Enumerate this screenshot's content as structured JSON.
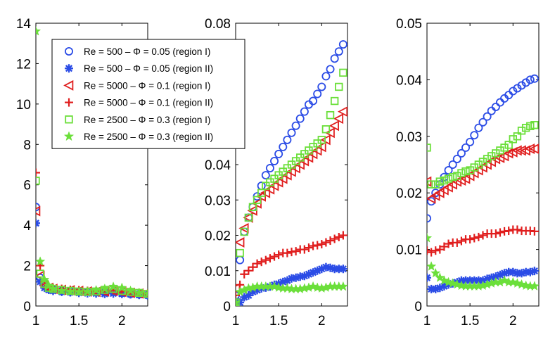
{
  "chart_data": [
    {
      "type": "scatter",
      "panel": "left",
      "xlim": [
        1,
        2.3
      ],
      "ylim": [
        0,
        14
      ],
      "xticks": [
        1,
        1.5,
        2
      ],
      "xtick_labels": [
        "1",
        "1.5",
        "2"
      ],
      "yticks": [
        0,
        2,
        4,
        6,
        8,
        10,
        12,
        14
      ],
      "ytick_labels": [
        "0",
        "2",
        "4",
        "6",
        "8",
        "10",
        "12",
        "14"
      ],
      "series": [
        {
          "name": "Re = 500 – Φ = 0.05 (region I)",
          "marker": "circle",
          "color": "#2b4ce6",
          "x": [
            1.0,
            1.05,
            1.1,
            1.15,
            1.2,
            1.3,
            1.4,
            1.5,
            1.6,
            1.7,
            1.8,
            1.9,
            2.0,
            2.1,
            2.2,
            2.3
          ],
          "y": [
            4.9,
            1.4,
            1.0,
            0.85,
            0.8,
            0.75,
            0.72,
            0.7,
            0.7,
            0.68,
            0.68,
            0.7,
            0.65,
            0.6,
            0.58,
            0.55
          ]
        },
        {
          "name": "Re = 500 – Φ = 0.05 (region II)",
          "marker": "asterisk",
          "color": "#2b4ce6",
          "x": [
            1.0,
            1.05,
            1.1,
            1.15,
            1.2,
            1.3,
            1.4,
            1.5,
            1.6,
            1.7,
            1.8,
            1.9,
            2.0,
            2.1,
            2.2,
            2.3
          ],
          "y": [
            4.1,
            1.2,
            0.9,
            0.8,
            0.75,
            0.7,
            0.68,
            0.65,
            0.63,
            0.62,
            0.6,
            0.62,
            0.6,
            0.58,
            0.55,
            0.52
          ]
        },
        {
          "name": "Re = 5000 – Φ = 0.1 (region I)",
          "marker": "triangle-left",
          "color": "#e01e1e",
          "x": [
            1.0,
            1.05,
            1.1,
            1.15,
            1.2,
            1.3,
            1.4,
            1.5,
            1.6,
            1.7,
            1.8,
            1.9,
            2.0,
            2.1,
            2.2,
            2.3
          ],
          "y": [
            4.7,
            1.5,
            1.0,
            0.9,
            0.85,
            0.8,
            0.78,
            0.75,
            0.72,
            0.7,
            0.72,
            0.75,
            0.7,
            0.65,
            0.62,
            0.6
          ]
        },
        {
          "name": "Re = 5000 – Φ = 0.1 (region II)",
          "marker": "plus",
          "color": "#e01e1e",
          "x": [
            1.0,
            1.05,
            1.1,
            1.15,
            1.2,
            1.3,
            1.4,
            1.5,
            1.6,
            1.7,
            1.8,
            1.9,
            2.0,
            2.1,
            2.2,
            2.3
          ],
          "y": [
            6.6,
            2.0,
            1.2,
            0.95,
            0.9,
            0.85,
            0.8,
            0.78,
            0.75,
            0.74,
            0.75,
            0.78,
            0.72,
            0.68,
            0.65,
            0.62
          ]
        },
        {
          "name": "Re = 2500 – Φ = 0.3 (region I)",
          "marker": "square",
          "color": "#6bdf3a",
          "x": [
            1.0,
            1.05,
            1.1,
            1.15,
            1.2,
            1.3,
            1.4,
            1.5,
            1.6,
            1.7,
            1.8,
            1.9,
            2.0,
            2.1,
            2.2,
            2.3
          ],
          "y": [
            6.2,
            1.6,
            1.1,
            0.9,
            0.85,
            0.8,
            0.75,
            0.72,
            0.7,
            0.72,
            0.8,
            0.85,
            0.75,
            0.7,
            0.65,
            0.6
          ]
        },
        {
          "name": "Re = 2500 – Φ = 0.3 (region II)",
          "marker": "star",
          "color": "#6bdf3a",
          "x": [
            1.0,
            1.05,
            1.1,
            1.15,
            1.2,
            1.3,
            1.4,
            1.5,
            1.6,
            1.7,
            1.8,
            1.9,
            2.0,
            2.1,
            2.2,
            2.3
          ],
          "y": [
            13.6,
            2.2,
            1.3,
            1.0,
            0.85,
            0.75,
            0.72,
            0.7,
            0.72,
            0.78,
            0.85,
            0.95,
            0.9,
            0.75,
            0.65,
            0.6
          ]
        }
      ]
    },
    {
      "type": "scatter",
      "panel": "middle",
      "xlim": [
        1,
        2.3
      ],
      "ylim": [
        0,
        0.08
      ],
      "xticks": [
        1,
        1.5,
        2
      ],
      "xtick_labels": [
        "1",
        "1.5",
        "2"
      ],
      "yticks": [
        0,
        0.01,
        0.02,
        0.03,
        0.04,
        0.08
      ],
      "ytick_labels": [
        "0",
        "0.01",
        "0.02",
        "0.03",
        "0.04",
        "0.08"
      ],
      "series": [
        {
          "name": "Re = 500 – Φ = 0.05 (region I)",
          "marker": "circle",
          "color": "#2b4ce6",
          "x": [
            1.0,
            1.05,
            1.1,
            1.15,
            1.2,
            1.25,
            1.3,
            1.35,
            1.4,
            1.45,
            1.5,
            1.55,
            1.6,
            1.65,
            1.7,
            1.75,
            1.8,
            1.85,
            1.9,
            1.95,
            2.0,
            2.05,
            2.1,
            2.15,
            2.2,
            2.25
          ],
          "y": [
            0.003,
            0.013,
            0.021,
            0.025,
            0.028,
            0.031,
            0.034,
            0.037,
            0.039,
            0.041,
            0.043,
            0.045,
            0.047,
            0.049,
            0.051,
            0.053,
            0.055,
            0.057,
            0.058,
            0.06,
            0.062,
            0.065,
            0.067,
            0.07,
            0.072,
            0.074
          ]
        },
        {
          "name": "Re = 500 – Φ = 0.05 (region II)",
          "marker": "asterisk",
          "color": "#2b4ce6",
          "x": [
            1.0,
            1.05,
            1.1,
            1.15,
            1.2,
            1.25,
            1.3,
            1.35,
            1.4,
            1.45,
            1.5,
            1.55,
            1.6,
            1.65,
            1.7,
            1.75,
            1.8,
            1.85,
            1.9,
            1.95,
            2.0,
            2.05,
            2.1,
            2.15,
            2.2,
            2.25
          ],
          "y": [
            0.0015,
            0.001,
            0.0025,
            0.003,
            0.004,
            0.0045,
            0.005,
            0.0052,
            0.0055,
            0.006,
            0.0063,
            0.0068,
            0.0072,
            0.0078,
            0.008,
            0.0083,
            0.0085,
            0.009,
            0.0095,
            0.01,
            0.0105,
            0.011,
            0.0108,
            0.0105,
            0.0105,
            0.0105
          ]
        },
        {
          "name": "Re = 5000 – Φ = 0.1 (region I)",
          "marker": "triangle-left",
          "color": "#e01e1e",
          "x": [
            1.0,
            1.05,
            1.1,
            1.15,
            1.2,
            1.25,
            1.3,
            1.35,
            1.4,
            1.45,
            1.5,
            1.55,
            1.6,
            1.65,
            1.7,
            1.75,
            1.8,
            1.85,
            1.9,
            1.95,
            2.0,
            2.05,
            2.1,
            2.15,
            2.2,
            2.25
          ],
          "y": [
            0.005,
            0.018,
            0.022,
            0.025,
            0.027,
            0.029,
            0.031,
            0.032,
            0.033,
            0.034,
            0.035,
            0.036,
            0.037,
            0.038,
            0.039,
            0.04,
            0.041,
            0.042,
            0.043,
            0.044,
            0.045,
            0.047,
            0.049,
            0.051,
            0.053,
            0.055
          ]
        },
        {
          "name": "Re = 5000 – Φ = 0.1 (region II)",
          "marker": "plus",
          "color": "#e01e1e",
          "x": [
            1.0,
            1.05,
            1.1,
            1.15,
            1.2,
            1.25,
            1.3,
            1.35,
            1.4,
            1.45,
            1.5,
            1.55,
            1.6,
            1.65,
            1.7,
            1.75,
            1.8,
            1.85,
            1.9,
            1.95,
            2.0,
            2.05,
            2.1,
            2.15,
            2.2,
            2.25
          ],
          "y": [
            0.003,
            0.006,
            0.009,
            0.01,
            0.011,
            0.012,
            0.0125,
            0.013,
            0.0135,
            0.014,
            0.0145,
            0.015,
            0.015,
            0.0153,
            0.0155,
            0.016,
            0.016,
            0.0165,
            0.017,
            0.0172,
            0.0175,
            0.018,
            0.0185,
            0.019,
            0.0195,
            0.02
          ]
        },
        {
          "name": "Re = 2500 – Φ = 0.3 (region I)",
          "marker": "square",
          "color": "#6bdf3a",
          "x": [
            1.0,
            1.05,
            1.1,
            1.15,
            1.2,
            1.25,
            1.3,
            1.35,
            1.4,
            1.45,
            1.5,
            1.55,
            1.6,
            1.65,
            1.7,
            1.75,
            1.8,
            1.85,
            1.9,
            1.95,
            2.0,
            2.05,
            2.1,
            2.15,
            2.2,
            2.25
          ],
          "y": [
            0.001,
            0.015,
            0.021,
            0.025,
            0.028,
            0.03,
            0.032,
            0.034,
            0.035,
            0.036,
            0.037,
            0.038,
            0.039,
            0.04,
            0.041,
            0.042,
            0.043,
            0.044,
            0.045,
            0.046,
            0.047,
            0.05,
            0.054,
            0.058,
            0.062,
            0.066
          ]
        },
        {
          "name": "Re = 2500 – Φ = 0.3 (region II)",
          "marker": "star",
          "color": "#6bdf3a",
          "x": [
            1.0,
            1.05,
            1.1,
            1.15,
            1.2,
            1.25,
            1.3,
            1.35,
            1.4,
            1.45,
            1.5,
            1.55,
            1.6,
            1.65,
            1.7,
            1.75,
            1.8,
            1.85,
            1.9,
            1.95,
            2.0,
            2.05,
            2.1,
            2.15,
            2.2,
            2.25
          ],
          "y": [
            0.001,
            0.004,
            0.0045,
            0.005,
            0.0052,
            0.0055,
            0.0055,
            0.0055,
            0.0055,
            0.0055,
            0.0052,
            0.005,
            0.005,
            0.0048,
            0.0048,
            0.0048,
            0.005,
            0.0052,
            0.0055,
            0.0052,
            0.005,
            0.0052,
            0.0055,
            0.0055,
            0.0055,
            0.0055
          ]
        }
      ]
    },
    {
      "type": "scatter",
      "panel": "right",
      "xlim": [
        1,
        2.3
      ],
      "ylim": [
        0,
        0.05
      ],
      "xticks": [
        1,
        1.5,
        2
      ],
      "xtick_labels": [
        "1",
        "1.5",
        "2"
      ],
      "yticks": [
        0,
        0.01,
        0.02,
        0.03,
        0.04,
        0.05
      ],
      "ytick_labels": [
        "0",
        "0.01",
        "0.02",
        "0.03",
        "0.04",
        "0.05"
      ],
      "series": [
        {
          "name": "Re = 500 – Φ = 0.05 (region I)",
          "marker": "circle",
          "color": "#2b4ce6",
          "x": [
            1.0,
            1.05,
            1.1,
            1.15,
            1.2,
            1.25,
            1.3,
            1.35,
            1.4,
            1.45,
            1.5,
            1.55,
            1.6,
            1.65,
            1.7,
            1.75,
            1.8,
            1.85,
            1.9,
            1.95,
            2.0,
            2.05,
            2.1,
            2.15,
            2.2,
            2.25
          ],
          "y": [
            0.0155,
            0.0185,
            0.02,
            0.0215,
            0.0228,
            0.024,
            0.025,
            0.026,
            0.027,
            0.028,
            0.029,
            0.0302,
            0.0315,
            0.0325,
            0.0335,
            0.0345,
            0.0352,
            0.036,
            0.0367,
            0.0373,
            0.038,
            0.0385,
            0.039,
            0.0395,
            0.04,
            0.0402
          ]
        },
        {
          "name": "Re = 500 – Φ = 0.05 (region II)",
          "marker": "asterisk",
          "color": "#2b4ce6",
          "x": [
            1.0,
            1.05,
            1.1,
            1.15,
            1.2,
            1.25,
            1.3,
            1.35,
            1.4,
            1.45,
            1.5,
            1.55,
            1.6,
            1.65,
            1.7,
            1.75,
            1.8,
            1.85,
            1.9,
            1.95,
            2.0,
            2.05,
            2.1,
            2.15,
            2.2,
            2.25
          ],
          "y": [
            0.005,
            0.003,
            0.003,
            0.0032,
            0.0035,
            0.0038,
            0.004,
            0.0042,
            0.0045,
            0.0045,
            0.0045,
            0.0045,
            0.0045,
            0.0045,
            0.0048,
            0.005,
            0.0052,
            0.0055,
            0.0058,
            0.006,
            0.006,
            0.0058,
            0.0058,
            0.006,
            0.006,
            0.0062
          ]
        },
        {
          "name": "Re = 5000 – Φ = 0.1 (region I)",
          "marker": "triangle-left",
          "color": "#e01e1e",
          "x": [
            1.0,
            1.05,
            1.1,
            1.15,
            1.2,
            1.25,
            1.3,
            1.35,
            1.4,
            1.45,
            1.5,
            1.55,
            1.6,
            1.65,
            1.7,
            1.75,
            1.8,
            1.85,
            1.9,
            1.95,
            2.0,
            2.05,
            2.1,
            2.15,
            2.2,
            2.25
          ],
          "y": [
            0.022,
            0.019,
            0.0195,
            0.02,
            0.0205,
            0.021,
            0.0215,
            0.022,
            0.0222,
            0.0225,
            0.023,
            0.0235,
            0.024,
            0.0245,
            0.025,
            0.0255,
            0.026,
            0.0262,
            0.0265,
            0.027,
            0.0272,
            0.0275,
            0.0275,
            0.0275,
            0.0278,
            0.0278
          ]
        },
        {
          "name": "Re = 5000 – Φ = 0.1 (region II)",
          "marker": "plus",
          "color": "#e01e1e",
          "x": [
            1.0,
            1.05,
            1.1,
            1.15,
            1.2,
            1.25,
            1.3,
            1.35,
            1.4,
            1.45,
            1.5,
            1.55,
            1.6,
            1.65,
            1.7,
            1.75,
            1.8,
            1.85,
            1.9,
            1.95,
            2.0,
            2.05,
            2.1,
            2.15,
            2.2,
            2.25
          ],
          "y": [
            0.0098,
            0.0095,
            0.0098,
            0.01,
            0.0105,
            0.011,
            0.0112,
            0.0112,
            0.0115,
            0.0118,
            0.0118,
            0.012,
            0.0122,
            0.0125,
            0.0128,
            0.0128,
            0.0128,
            0.013,
            0.0132,
            0.0133,
            0.0135,
            0.0135,
            0.0133,
            0.0133,
            0.0133,
            0.0132
          ]
        },
        {
          "name": "Re = 2500 – Φ = 0.3 (region I)",
          "marker": "square",
          "color": "#6bdf3a",
          "x": [
            1.0,
            1.05,
            1.1,
            1.15,
            1.2,
            1.25,
            1.3,
            1.35,
            1.4,
            1.45,
            1.5,
            1.55,
            1.6,
            1.65,
            1.7,
            1.75,
            1.8,
            1.85,
            1.9,
            1.95,
            2.0,
            2.05,
            2.1,
            2.15,
            2.2,
            2.25
          ],
          "y": [
            0.028,
            0.0215,
            0.0215,
            0.022,
            0.0222,
            0.0225,
            0.0228,
            0.023,
            0.0235,
            0.0238,
            0.024,
            0.0245,
            0.025,
            0.0255,
            0.026,
            0.0265,
            0.027,
            0.0275,
            0.028,
            0.0285,
            0.0295,
            0.03,
            0.031,
            0.0315,
            0.0318,
            0.032
          ]
        },
        {
          "name": "Re = 2500 – Φ = 0.3 (region II)",
          "marker": "star",
          "color": "#6bdf3a",
          "x": [
            1.0,
            1.05,
            1.1,
            1.15,
            1.2,
            1.25,
            1.3,
            1.35,
            1.4,
            1.45,
            1.5,
            1.55,
            1.6,
            1.65,
            1.7,
            1.75,
            1.8,
            1.85,
            1.9,
            1.95,
            2.0,
            2.05,
            2.1,
            2.15,
            2.2,
            2.25
          ],
          "y": [
            0.012,
            0.007,
            0.0058,
            0.005,
            0.0045,
            0.0042,
            0.004,
            0.0038,
            0.0036,
            0.0035,
            0.0035,
            0.0035,
            0.0035,
            0.0036,
            0.0038,
            0.004,
            0.0042,
            0.0042,
            0.0045,
            0.0042,
            0.0042,
            0.004,
            0.0038,
            0.0036,
            0.0035,
            0.0035
          ]
        }
      ]
    }
  ]
}
